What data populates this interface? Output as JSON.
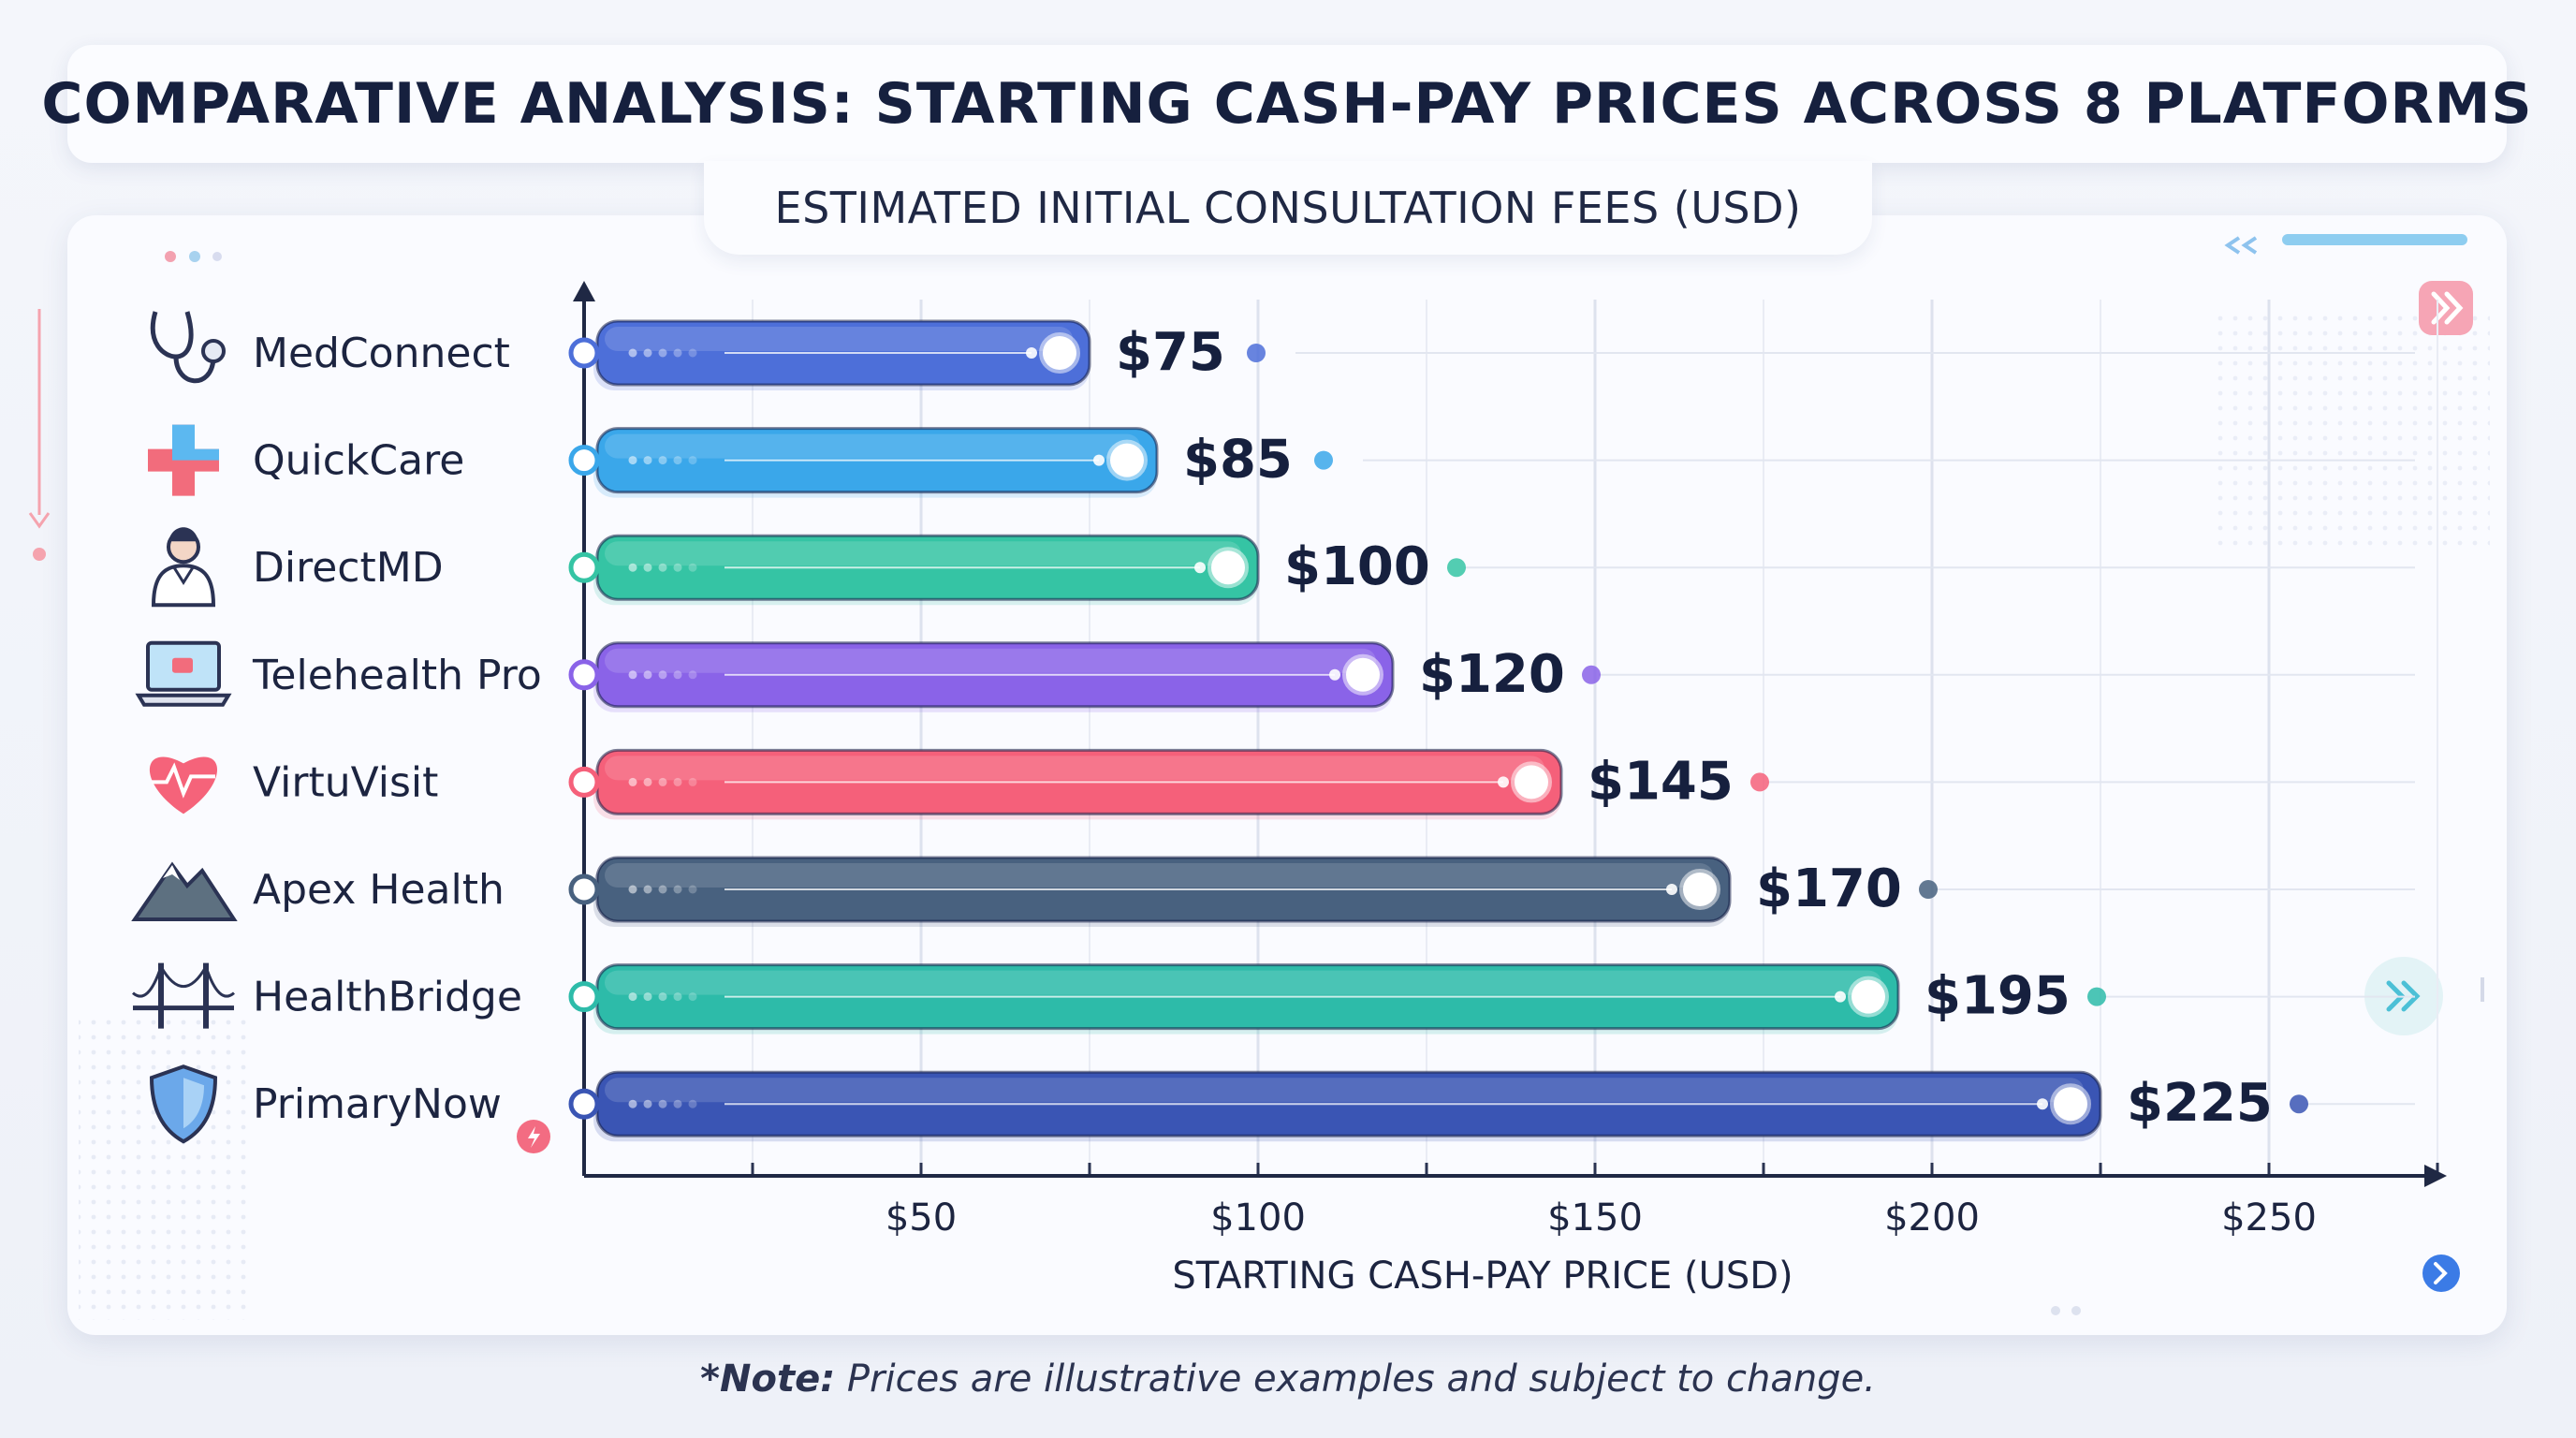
{
  "title": "COMPARATIVE ANALYSIS: STARTING CASH-PAY PRICES ACROSS 8 PLATFORMS",
  "subtitle": "ESTIMATED INITIAL CONSULTATION FEES (USD)",
  "note": {
    "bold": "*Note:",
    "text": " Prices are illustrative examples and subject to change."
  },
  "chart_data": {
    "type": "bar",
    "orientation": "horizontal",
    "title": "COMPARATIVE ANALYSIS: STARTING CASH-PAY PRICES ACROSS 8 PLATFORMS",
    "subtitle": "ESTIMATED INITIAL CONSULTATION FEES (USD)",
    "xlabel": "STARTING CASH-PAY PRICE (USD)",
    "ylabel": "",
    "xlim": [
      0,
      275
    ],
    "x_ticks": [
      50,
      100,
      150,
      200,
      250
    ],
    "x_tick_labels": [
      "$50",
      "$100",
      "$150",
      "$200",
      "$250"
    ],
    "grid": true,
    "categories": [
      "MedConnect",
      "QuickCare",
      "DirectMD",
      "Telehealth Pro",
      "VirtuVisit",
      "Apex Health",
      "HealthBridge",
      "PrimaryNow"
    ],
    "values": [
      75,
      85,
      100,
      120,
      145,
      170,
      195,
      225
    ],
    "value_labels": [
      "$75",
      "$85",
      "$100",
      "$120",
      "$145",
      "$170",
      "$195",
      "$225"
    ],
    "colors": [
      "#4d6fd9",
      "#3aa7ea",
      "#35c4a4",
      "#8a63e8",
      "#f5607a",
      "#48617f",
      "#2dbba9",
      "#3a55b4"
    ],
    "icons": [
      "stethoscope-icon",
      "medical-cross-icon",
      "doctor-icon",
      "laptop-video-icon",
      "heart-pulse-icon",
      "mountain-icon",
      "bridge-icon",
      "shield-icon"
    ]
  }
}
